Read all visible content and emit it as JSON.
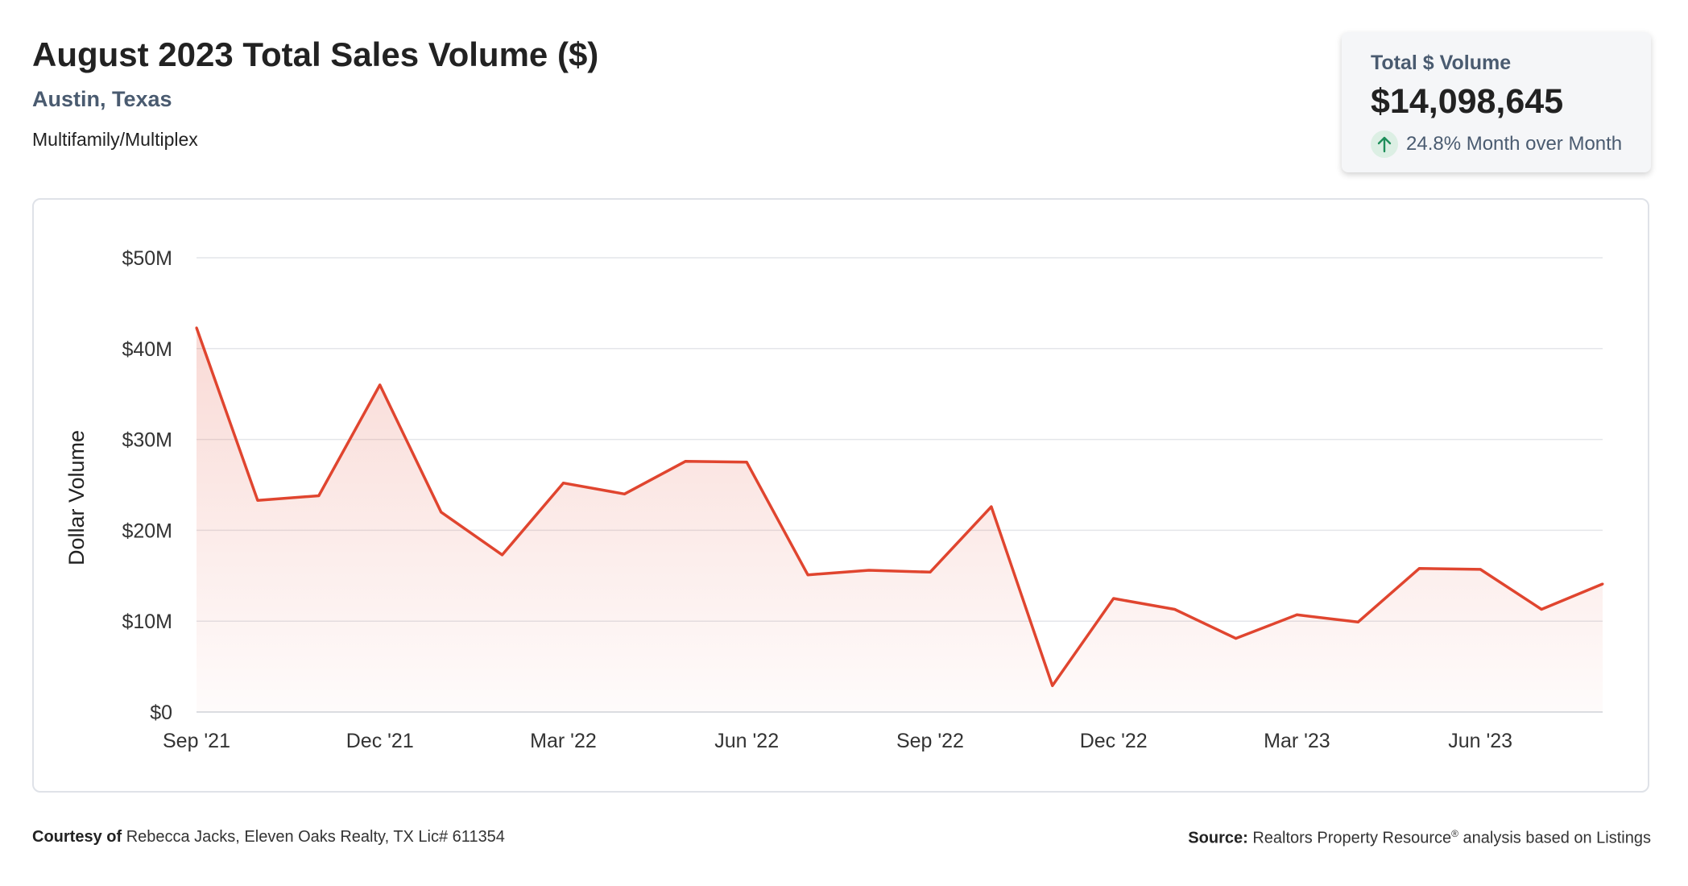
{
  "header": {
    "title": "August 2023 Total Sales Volume ($)",
    "location": "Austin, Texas",
    "property_type": "Multifamily/Multiplex"
  },
  "kpi": {
    "label": "Total $ Volume",
    "value": "$14,098,645",
    "change": "24.8% Month over Month",
    "trend_icon": "arrow-up-icon",
    "trend_color": "#1e8e5a"
  },
  "footer": {
    "courtesy_label": "Courtesy of",
    "courtesy_text": "Rebecca Jacks, Eleven Oaks Realty, TX Lic# 611354",
    "source_label": "Source:",
    "source_text_pre": "Realtors Property Resource",
    "source_reg": "®",
    "source_text_post": "analysis based on Listings"
  },
  "chart_data": {
    "type": "area",
    "ylabel": "Dollar Volume",
    "ylim": [
      0,
      50000000
    ],
    "y_ticks": [
      0,
      10000000,
      20000000,
      30000000,
      40000000,
      50000000
    ],
    "y_tick_labels": [
      "$0",
      "$10M",
      "$20M",
      "$30M",
      "$40M",
      "$50M"
    ],
    "x_tick_labels": [
      "Sep '21",
      "Dec '21",
      "Mar '22",
      "Jun '22",
      "Sep '22",
      "Dec '22",
      "Mar '23",
      "Jun '23"
    ],
    "x_tick_indices": [
      0,
      3,
      6,
      9,
      12,
      15,
      18,
      21
    ],
    "grid": true,
    "line_color": "#e0452f",
    "months": [
      "Sep '21",
      "Oct '21",
      "Nov '21",
      "Dec '21",
      "Jan '22",
      "Feb '22",
      "Mar '22",
      "Apr '22",
      "May '22",
      "Jun '22",
      "Jul '22",
      "Aug '22",
      "Sep '22",
      "Oct '22",
      "Nov '22",
      "Dec '22",
      "Jan '23",
      "Feb '23",
      "Mar '23",
      "Apr '23",
      "May '23",
      "Jun '23",
      "Jul '23",
      "Aug '23"
    ],
    "values": [
      42300000,
      23300000,
      23800000,
      36000000,
      22000000,
      17300000,
      25200000,
      24000000,
      27600000,
      27500000,
      15100000,
      15600000,
      15400000,
      22600000,
      2900000,
      12500000,
      11300000,
      8100000,
      10700000,
      9900000,
      15800000,
      15700000,
      11300000,
      14098645
    ]
  }
}
